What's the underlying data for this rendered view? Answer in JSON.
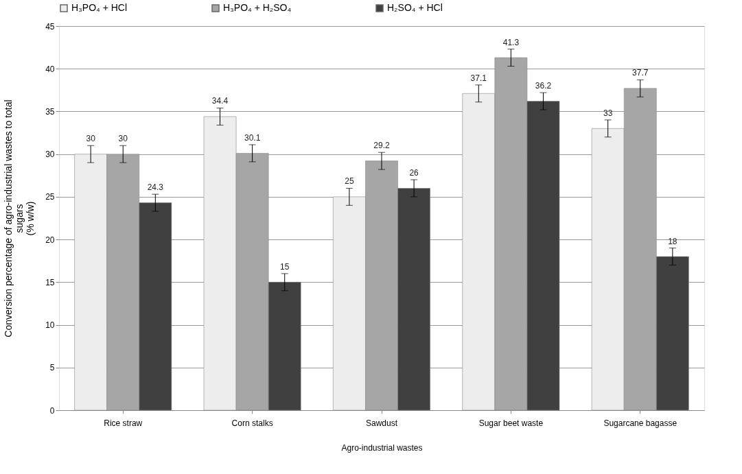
{
  "chart_data": {
    "type": "bar",
    "xlabel": "Agro-industrial wastes",
    "ylabel": "Conversion  percentage  of agro-industrial  wastes to total\nsugars\n(% w/w)",
    "categories": [
      "Rice straw",
      "Corn stalks",
      "Sawdust",
      "Sugar beet waste",
      "Sugarcane bagasse"
    ],
    "series": [
      {
        "name": "H₃PO₄ + HCl",
        "color": "#ededed",
        "values": [
          30,
          34.4,
          25,
          37.1,
          33
        ],
        "errors": [
          1,
          1,
          1,
          1,
          1
        ]
      },
      {
        "name": "H₃PO₄ + H₂SO₄",
        "color": "#a6a6a6",
        "values": [
          30,
          30.1,
          29.2,
          41.3,
          37.7
        ],
        "errors": [
          1,
          1,
          1,
          1,
          1
        ]
      },
      {
        "name": "H₂SO₄ + HCl",
        "color": "#404040",
        "values": [
          24.3,
          15,
          26,
          36.2,
          18
        ],
        "errors": [
          1,
          1,
          1,
          1,
          1
        ]
      }
    ],
    "ylim": [
      0,
      45
    ],
    "yticks": [
      0,
      5,
      10,
      15,
      20,
      25,
      30,
      35,
      40,
      45
    ],
    "grid": "y",
    "legend": "top",
    "data_labels": true
  }
}
